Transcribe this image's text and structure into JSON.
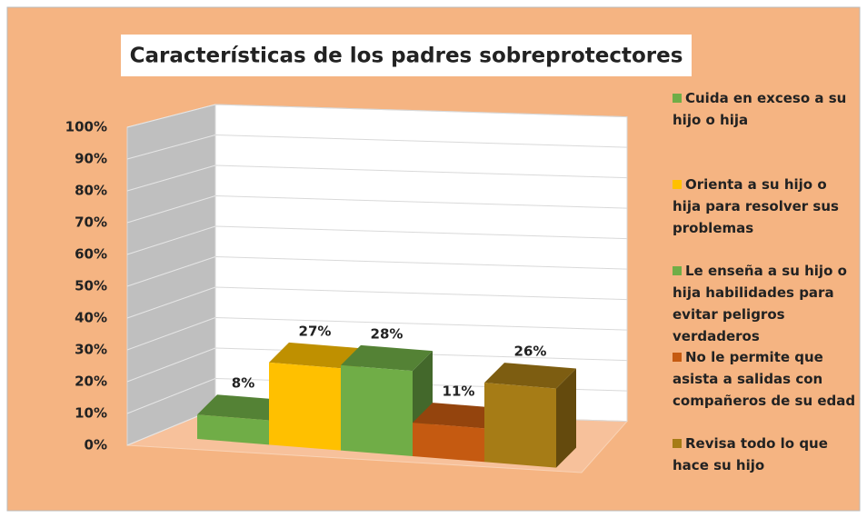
{
  "chart_data": {
    "type": "bar",
    "title": "Características de los padres sobreprotectores",
    "series": [
      {
        "name": "Cuida en exceso a su hijo o hija",
        "color": "#70AD47",
        "values": [
          8
        ],
        "value_labels": [
          "8%"
        ]
      },
      {
        "name": "Orienta a su hijo o hija para resolver sus problemas",
        "color": "#FFC000",
        "values": [
          27
        ],
        "value_labels": [
          "27%"
        ]
      },
      {
        "name": "Le enseña a su hijo o hija habilidades para evitar peligros verdaderos",
        "color": "#70AD47",
        "values": [
          28
        ],
        "value_labels": [
          "28%"
        ]
      },
      {
        "name": "No le permite que asista a salidas con compañeros de su edad",
        "color": "#C55A11",
        "values": [
          11
        ],
        "value_labels": [
          "11%"
        ]
      },
      {
        "name": "Revisa todo lo que hace su hijo",
        "color": "#A67C16",
        "values": [
          26
        ],
        "value_labels": [
          "26%"
        ]
      }
    ],
    "ylim": [
      0,
      100
    ],
    "yticks": [
      {
        "value": 0,
        "label": "0%"
      },
      {
        "value": 10,
        "label": "10%"
      },
      {
        "value": 20,
        "label": "20%"
      },
      {
        "value": 30,
        "label": "30%"
      },
      {
        "value": 40,
        "label": "40%"
      },
      {
        "value": 50,
        "label": "50%"
      },
      {
        "value": 60,
        "label": "60%"
      },
      {
        "value": 70,
        "label": "70%"
      },
      {
        "value": 80,
        "label": "80%"
      },
      {
        "value": 90,
        "label": "90%"
      },
      {
        "value": 100,
        "label": "100%"
      }
    ],
    "grid": true,
    "legend": "right"
  }
}
